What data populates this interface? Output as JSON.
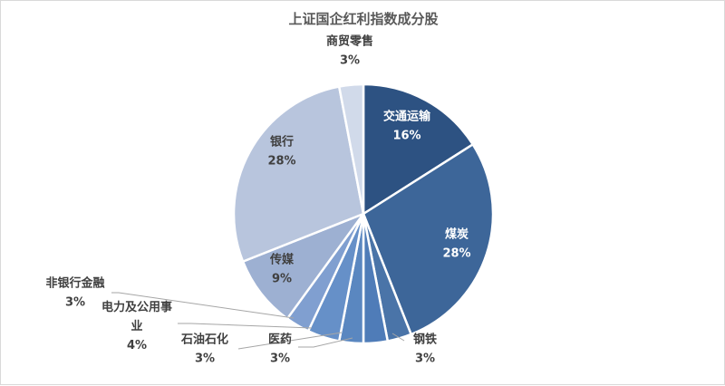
{
  "chart_data": {
    "type": "pie",
    "title": "上证国企红利指数成分股",
    "slices": [
      {
        "label": "交通运输",
        "value": 16,
        "display": "16%",
        "color": "#2d5282"
      },
      {
        "label": "煤炭",
        "value": 28,
        "display": "28%",
        "color": "#3d6699"
      },
      {
        "label": "钢铁",
        "value": 3,
        "display": "3%",
        "color": "#4a74a8"
      },
      {
        "label": "医药",
        "value": 3,
        "display": "3%",
        "color": "#4f7cb8"
      },
      {
        "label": "石油石化",
        "value": 3,
        "display": "3%",
        "color": "#5a87c0"
      },
      {
        "label": "电力及公用事业",
        "value": 4,
        "display": "4%",
        "color": "#6690c8"
      },
      {
        "label": "非银行金融",
        "value": 3,
        "display": "3%",
        "color": "#809fd0"
      },
      {
        "label": "传媒",
        "value": 9,
        "display": "9%",
        "color": "#9db0d2"
      },
      {
        "label": "银行",
        "value": 28,
        "display": "28%",
        "color": "#b8c5dd"
      },
      {
        "label": "商贸零售",
        "value": 3,
        "display": "3%",
        "color": "#d1daea"
      }
    ]
  }
}
